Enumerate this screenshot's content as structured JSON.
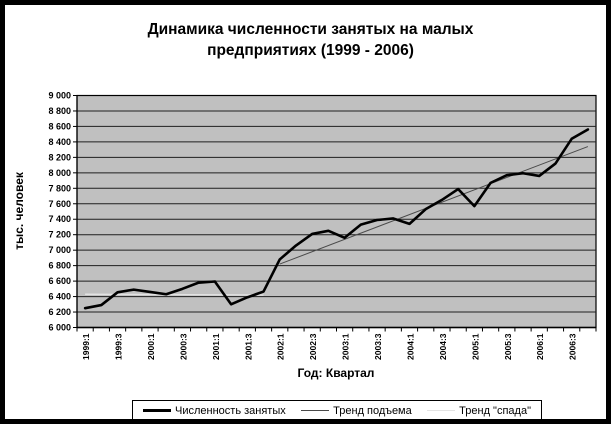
{
  "title": "Динамика численности занятых на малых предприятиях (1999 - 2006)",
  "title_lines": [
    "Динамика численности занятых на малых",
    "предприятиях (1999 - 2006)"
  ],
  "y_axis": {
    "label": "тыс. человек",
    "min": 6000,
    "max": 9000,
    "step": 200
  },
  "x_axis": {
    "label": "Год: Квартал"
  },
  "legend": [
    {
      "label": "Численность занятых",
      "color": "#000000",
      "style": "thick-solid"
    },
    {
      "label": "Тренд подъема",
      "color": "#4a4a4a",
      "style": "thin-solid"
    },
    {
      "label": "Тренд \"спада\"",
      "color": "#e3e3e3",
      "style": "thin-light"
    }
  ],
  "chart_data": {
    "type": "line",
    "title": "Динамика численности занятых на малых предприятиях (1999 - 2006)",
    "xlabel": "Год: Квартал",
    "ylabel": "тыс. человек",
    "ylim": [
      6000,
      9000
    ],
    "y_step": 200,
    "grid": true,
    "plot_bg": "#c0c0c0",
    "grid_color": "#1f1f1f",
    "legend_position": "bottom",
    "y_tick_labels": [
      "6 000",
      "6 200",
      "6 400",
      "6 600",
      "6 800",
      "7 000",
      "7 200",
      "7 400",
      "7 600",
      "7 800",
      "8 000",
      "8 200",
      "8 400",
      "8 600",
      "8 800",
      "9 000"
    ],
    "categories": [
      "1999:1",
      "1999:2",
      "1999:3",
      "1999:4",
      "2000:1",
      "2000:2",
      "2000:3",
      "2000:4",
      "2001:1",
      "2001:2",
      "2001:3",
      "2001:4",
      "2002:1",
      "2002:2",
      "2002:3",
      "2002:4",
      "2003:1",
      "2003:2",
      "2003:3",
      "2003:4",
      "2004:1",
      "2004:2",
      "2004:3",
      "2004:4",
      "2005:1",
      "2005:2",
      "2005:3",
      "2005:4",
      "2006:1",
      "2006:2",
      "2006:3",
      "2006:4"
    ],
    "x_tick_label_every": 2,
    "series": [
      {
        "name": "Численность занятых",
        "color": "#000000",
        "width": 2.6,
        "values": [
          6250,
          6290,
          6455,
          6490,
          6460,
          6430,
          6500,
          6580,
          6595,
          6300,
          6390,
          6465,
          6880,
          7060,
          7210,
          7250,
          7160,
          7330,
          7390,
          7410,
          7340,
          7530,
          7650,
          7790,
          7570,
          7870,
          7970,
          7995,
          7960,
          8120,
          8440,
          8560
        ]
      },
      {
        "name": "Тренд подъема",
        "color": "#4a4a4a",
        "width": 1,
        "trend_segment": {
          "from_category": "2002:1",
          "from_index": 12,
          "from_value": 6820,
          "to_category": "2006:4",
          "to_index": 31,
          "to_value": 8340
        }
      },
      {
        "name": "Тренд \"спада\"",
        "color": "#e3e3e3",
        "width": 1.4,
        "trend_segment": {
          "from_category": "1999:1",
          "from_index": 0,
          "from_value": 6430,
          "to_category": "2001:4",
          "to_index": 11,
          "to_value": 6420
        }
      }
    ]
  }
}
